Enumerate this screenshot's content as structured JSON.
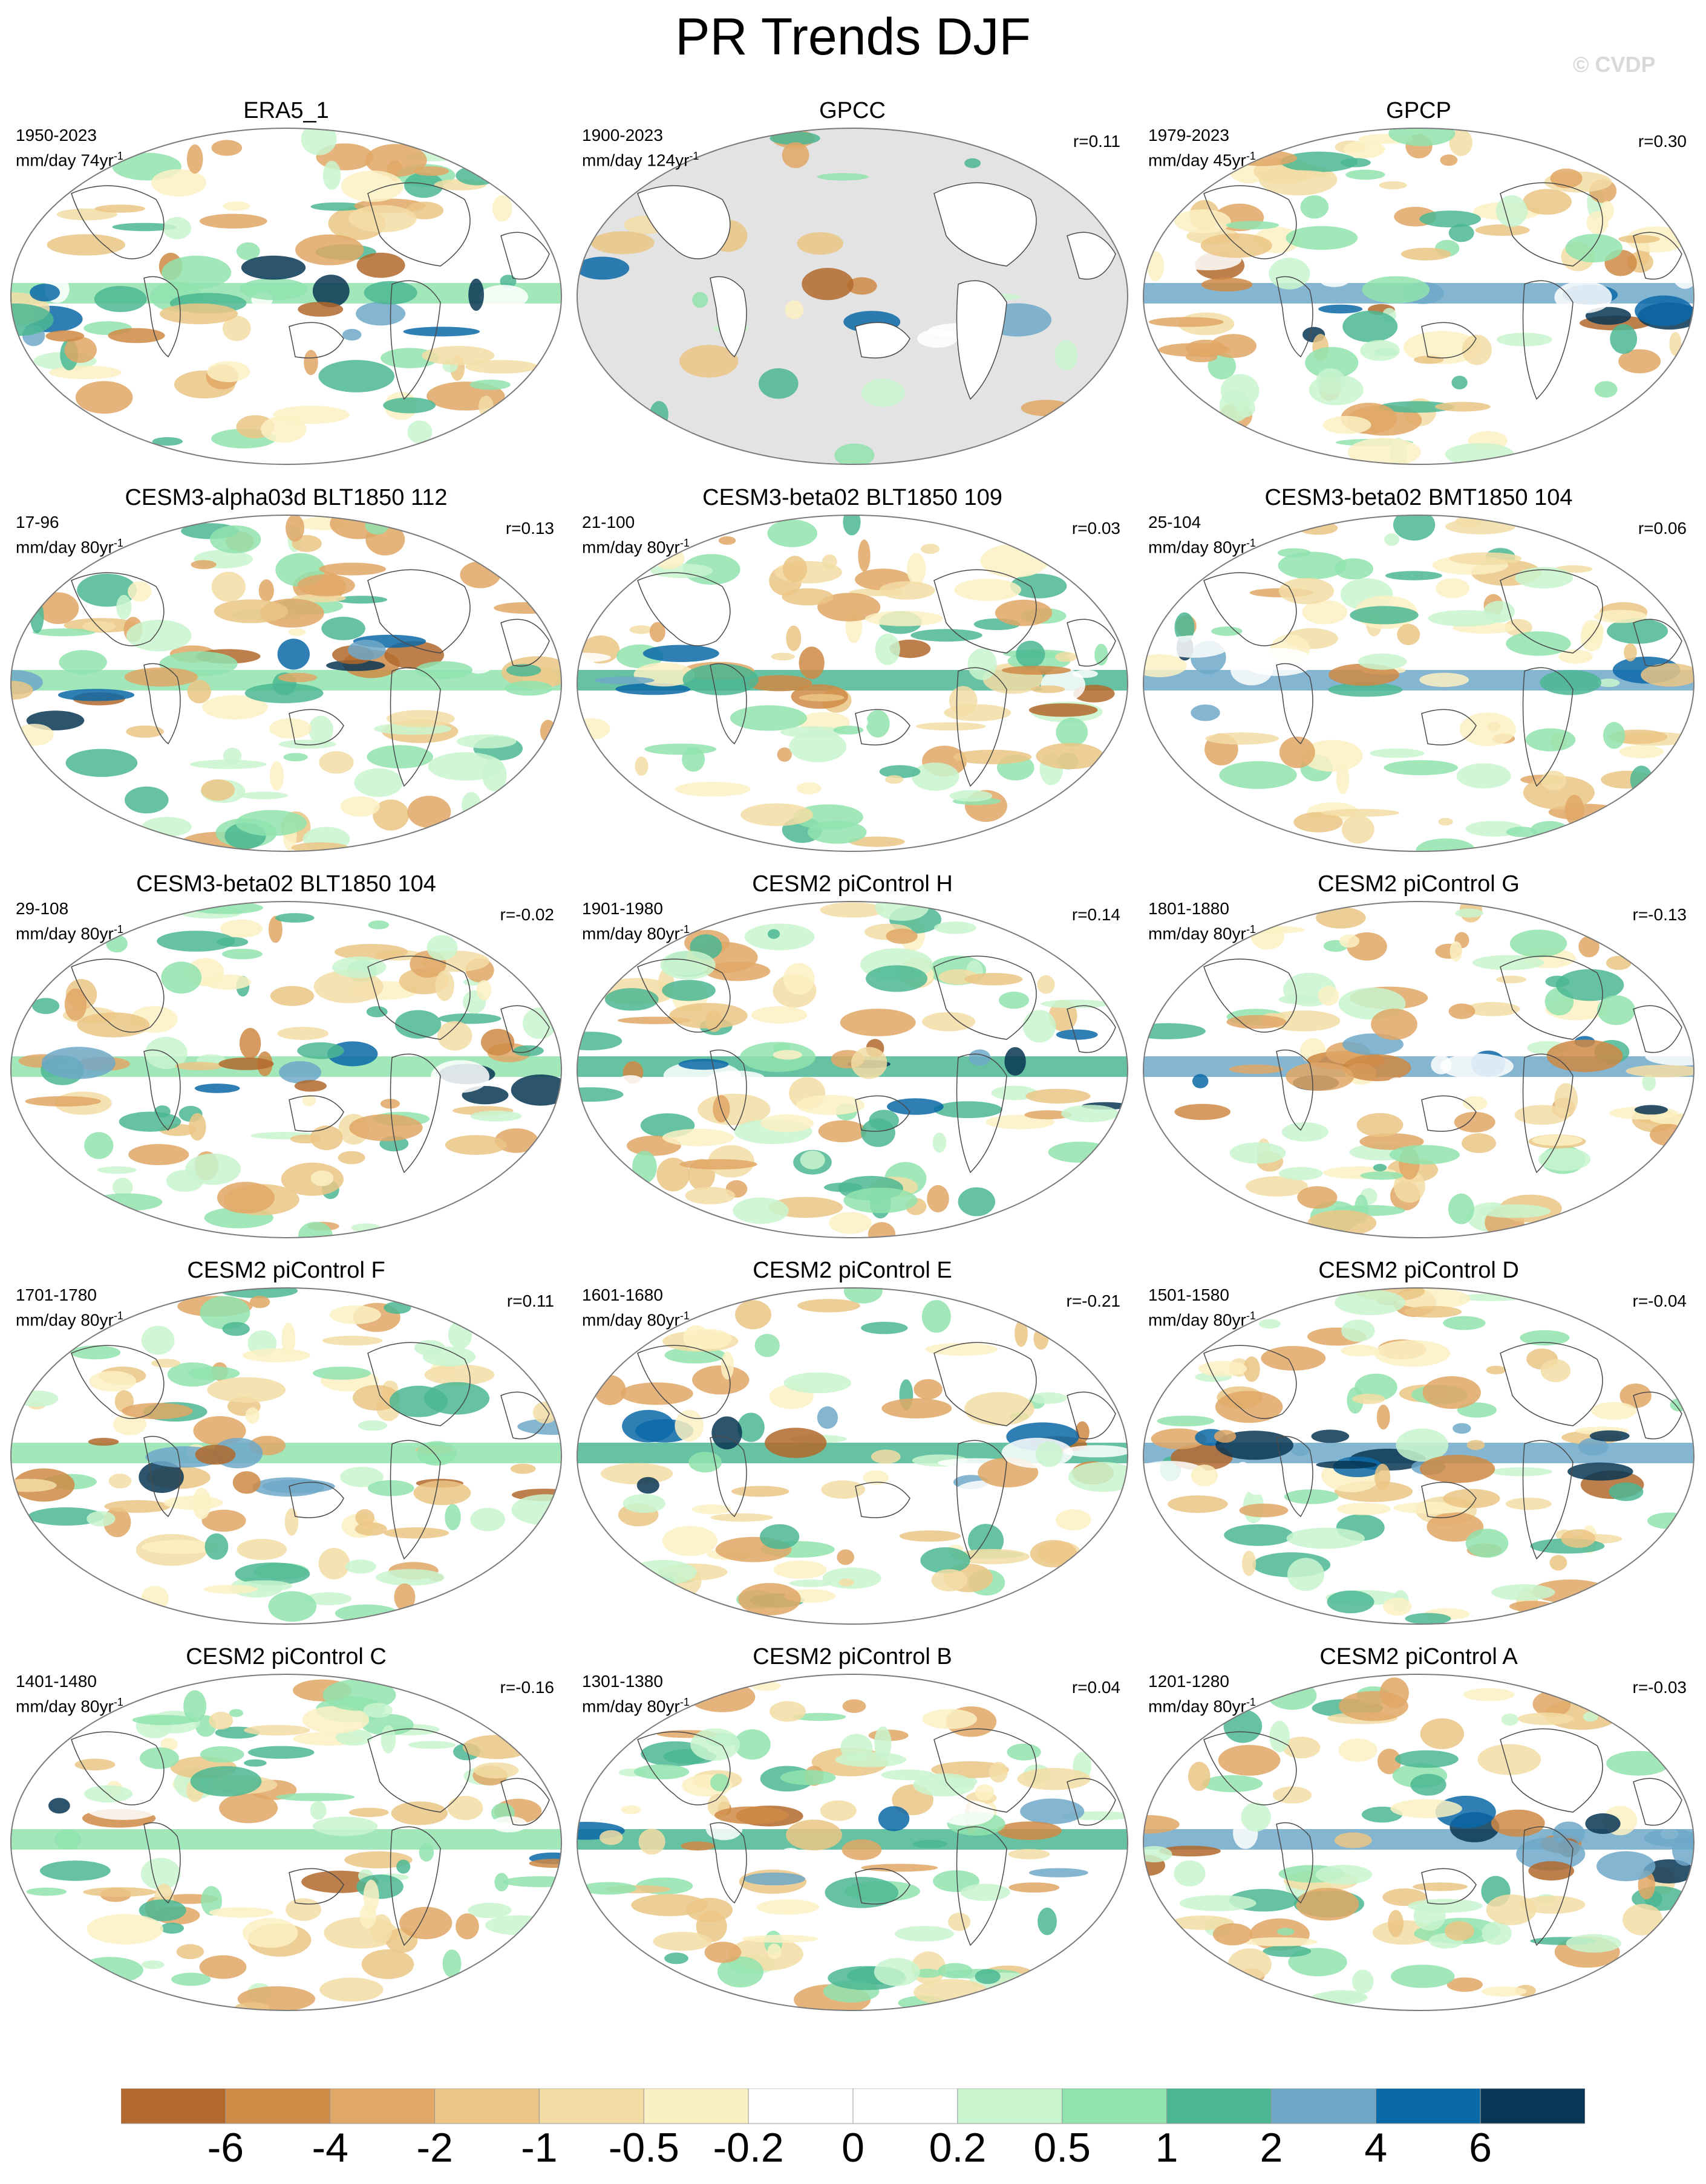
{
  "figure": {
    "title": "PR Trends DJF",
    "watermark": "© CVDP",
    "land_outline_icon": "continent-outline-icon"
  },
  "panels": [
    {
      "name": "ERA5_1",
      "range": "1950-2023",
      "units": "mm/day 74yr",
      "units_sup": "-1",
      "r": "",
      "mask_land_only": false
    },
    {
      "name": "GPCC",
      "range": "1900-2023",
      "units": "mm/day 124yr",
      "units_sup": "-1",
      "r": "r=0.11",
      "mask_land_only": true
    },
    {
      "name": "GPCP",
      "range": "1979-2023",
      "units": "mm/day 45yr",
      "units_sup": "-1",
      "r": "r=0.30",
      "mask_land_only": false
    },
    {
      "name": "CESM3-alpha03d BLT1850 112",
      "range": "17-96",
      "units": "mm/day 80yr",
      "units_sup": "-1",
      "r": "r=0.13",
      "mask_land_only": false
    },
    {
      "name": "CESM3-beta02 BLT1850 109",
      "range": "21-100",
      "units": "mm/day 80yr",
      "units_sup": "-1",
      "r": "r=0.03",
      "mask_land_only": false
    },
    {
      "name": "CESM3-beta02 BMT1850 104",
      "range": "25-104",
      "units": "mm/day 80yr",
      "units_sup": "-1",
      "r": "r=0.06",
      "mask_land_only": false
    },
    {
      "name": "CESM3-beta02 BLT1850 104",
      "range": "29-108",
      "units": "mm/day 80yr",
      "units_sup": "-1",
      "r": "r=-0.02",
      "mask_land_only": false
    },
    {
      "name": "CESM2 piControl H",
      "range": "1901-1980",
      "units": "mm/day 80yr",
      "units_sup": "-1",
      "r": "r=0.14",
      "mask_land_only": false
    },
    {
      "name": "CESM2 piControl G",
      "range": "1801-1880",
      "units": "mm/day 80yr",
      "units_sup": "-1",
      "r": "r=-0.13",
      "mask_land_only": false
    },
    {
      "name": "CESM2 piControl F",
      "range": "1701-1780",
      "units": "mm/day 80yr",
      "units_sup": "-1",
      "r": "r=0.11",
      "mask_land_only": false
    },
    {
      "name": "CESM2 piControl E",
      "range": "1601-1680",
      "units": "mm/day 80yr",
      "units_sup": "-1",
      "r": "r=-0.21",
      "mask_land_only": false
    },
    {
      "name": "CESM2 piControl D",
      "range": "1501-1580",
      "units": "mm/day 80yr",
      "units_sup": "-1",
      "r": "r=-0.04",
      "mask_land_only": false
    },
    {
      "name": "CESM2 piControl C",
      "range": "1401-1480",
      "units": "mm/day 80yr",
      "units_sup": "-1",
      "r": "r=-0.16",
      "mask_land_only": false
    },
    {
      "name": "CESM2 piControl B",
      "range": "1301-1380",
      "units": "mm/day 80yr",
      "units_sup": "-1",
      "r": "r=0.04",
      "mask_land_only": false
    },
    {
      "name": "CESM2 piControl A",
      "range": "1201-1280",
      "units": "mm/day 80yr",
      "units_sup": "-1",
      "r": "r=-0.03",
      "mask_land_only": false
    }
  ],
  "colorbar": {
    "labels": [
      "-6",
      "-4",
      "-2",
      "-1",
      "-0.5",
      "-0.2",
      "0",
      "0.2",
      "0.5",
      "1",
      "2",
      "4",
      "6"
    ],
    "colors": [
      "#b2692b",
      "#cf8a45",
      "#e0a766",
      "#ebc585",
      "#f3dda4",
      "#fbf0c3",
      "#ffffff",
      "#ffffff",
      "#c9f5cf",
      "#91e3ae",
      "#4bb793",
      "#6fa8c9",
      "#0a69a8",
      "#083654"
    ]
  }
}
